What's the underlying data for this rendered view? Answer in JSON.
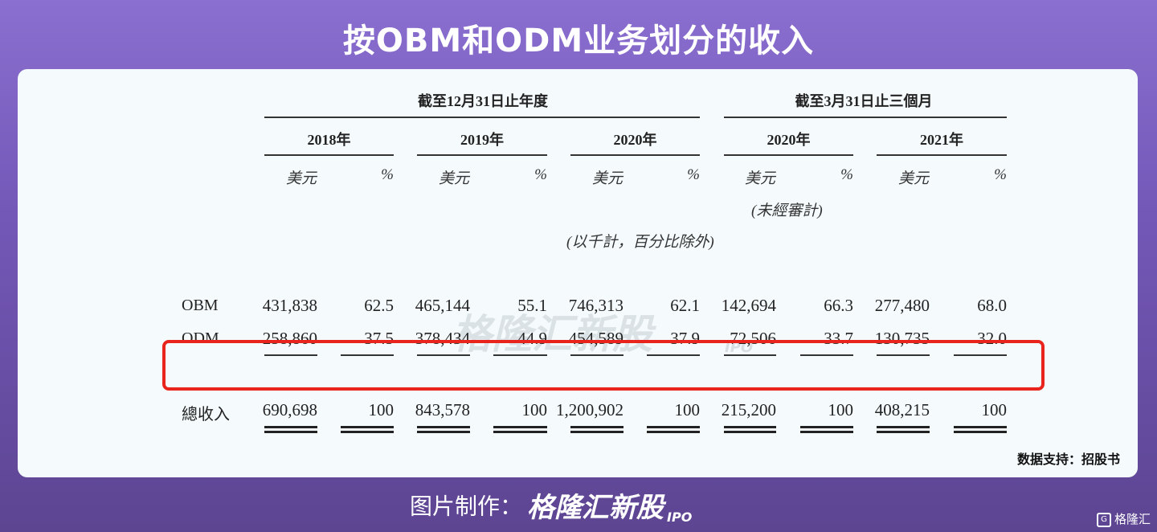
{
  "title": "按OBM和ODM业务划分的收入",
  "table": {
    "group_headers": [
      "截至12月31日止年度",
      "截至3月31日止三個月"
    ],
    "years": [
      "2018年",
      "2019年",
      "2020年",
      "2020年",
      "2021年"
    ],
    "unit_usd": "美元",
    "unit_pct": "%",
    "unaudited": "(未經審計)",
    "thousands_note": "(以千計，百分比除外)",
    "rows": [
      {
        "label": "OBM",
        "values": [
          "431,838",
          "62.5",
          "465,144",
          "55.1",
          "746,313",
          "62.1",
          "142,694",
          "66.3",
          "277,480",
          "68.0"
        ]
      },
      {
        "label": "ODM",
        "values": [
          "258,860",
          "37.5",
          "378,434",
          "44.9",
          "454,589",
          "37.9",
          "72,506",
          "33.7",
          "130,735",
          "32.0"
        ]
      },
      {
        "label": "總收入",
        "values": [
          "690,698",
          "100",
          "843,578",
          "100",
          "1,200,902",
          "100",
          "215,200",
          "100",
          "408,215",
          "100"
        ]
      }
    ]
  },
  "watermark": {
    "text": "格隆汇新股",
    "sub": "IPO"
  },
  "source": "数据支持：招股书",
  "footer": {
    "label": "图片制作：",
    "brand": "格隆汇新股",
    "brand_sub": "IPO"
  },
  "corner_logo": {
    "icon": "G",
    "text": "格隆汇"
  },
  "colors": {
    "highlight": "#e8241d",
    "background_top": "#8a6fd0",
    "card": "#f5fbfd"
  }
}
